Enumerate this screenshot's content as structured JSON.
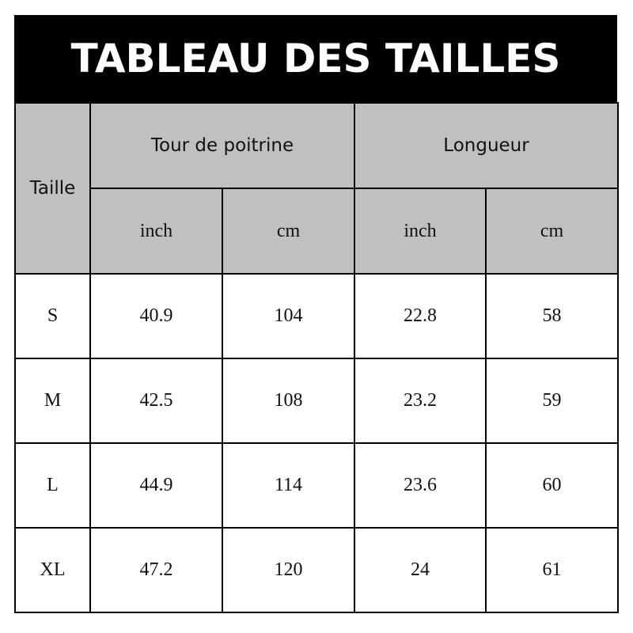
{
  "title": "TABLEAU DES TAILLES",
  "header": {
    "size_label": "Taille",
    "groups": [
      "Tour de poitrine",
      "Longueur"
    ],
    "units": [
      "inch",
      "cm",
      "inch",
      "cm"
    ]
  },
  "rows": [
    {
      "size": "S",
      "values": [
        "40.9",
        "104",
        "22.8",
        "58"
      ]
    },
    {
      "size": "M",
      "values": [
        "42.5",
        "108",
        "23.2",
        "59"
      ]
    },
    {
      "size": "L",
      "values": [
        "44.9",
        "114",
        "23.6",
        "60"
      ]
    },
    {
      "size": "XL",
      "values": [
        "47.2",
        "120",
        "24",
        "61"
      ]
    }
  ],
  "colors": {
    "header_bg": "#c0c0c0",
    "title_bg": "#000000",
    "title_text": "#ffffff"
  }
}
